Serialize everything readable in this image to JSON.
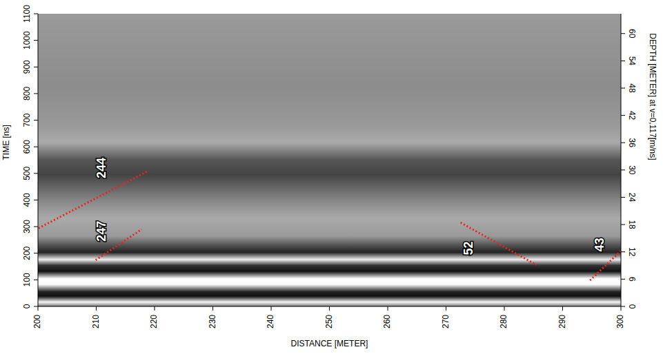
{
  "chart_data": {
    "type": "line",
    "x_label": "DISTANCE [METER]",
    "y_label": "TIME [ns]",
    "y2_label": "DEPTH [METER] at v=0,117[m/ns]",
    "xlim": [
      200,
      300
    ],
    "xticks": [
      200,
      210,
      220,
      230,
      240,
      250,
      260,
      270,
      280,
      290,
      300
    ],
    "ylim": [
      0,
      1100
    ],
    "yticks": [
      0,
      100,
      200,
      300,
      400,
      500,
      600,
      700,
      800,
      900,
      1000,
      1100
    ],
    "y2lim": [
      0,
      64.35
    ],
    "y2ticks": [
      0,
      6,
      12,
      18,
      24,
      30,
      36,
      42,
      48,
      54,
      60
    ],
    "series": [
      {
        "color": "#e8261f",
        "line_style": "dotted",
        "x": [
          198,
          219
        ],
        "values": [
          270,
          510
        ]
      },
      {
        "color": "#e8261f",
        "line_style": "dotted",
        "x": [
          209.9,
          217.8
        ],
        "values": [
          174,
          290
        ]
      },
      {
        "color": "#e8261f",
        "line_style": "dotted",
        "x": [
          272.5,
          285.5
        ],
        "values": [
          315,
          156
        ]
      },
      {
        "color": "#e8261f",
        "line_style": "dotted",
        "x": [
          294.7,
          301
        ],
        "values": [
          98,
          230
        ]
      }
    ],
    "annotations": [
      {
        "text": "244",
        "x": 211,
        "y": 520
      },
      {
        "text": "247",
        "x": 211,
        "y": 283
      },
      {
        "text": "52",
        "x": 274,
        "y": 219
      },
      {
        "text": "43",
        "x": 296.5,
        "y": 232
      }
    ]
  }
}
